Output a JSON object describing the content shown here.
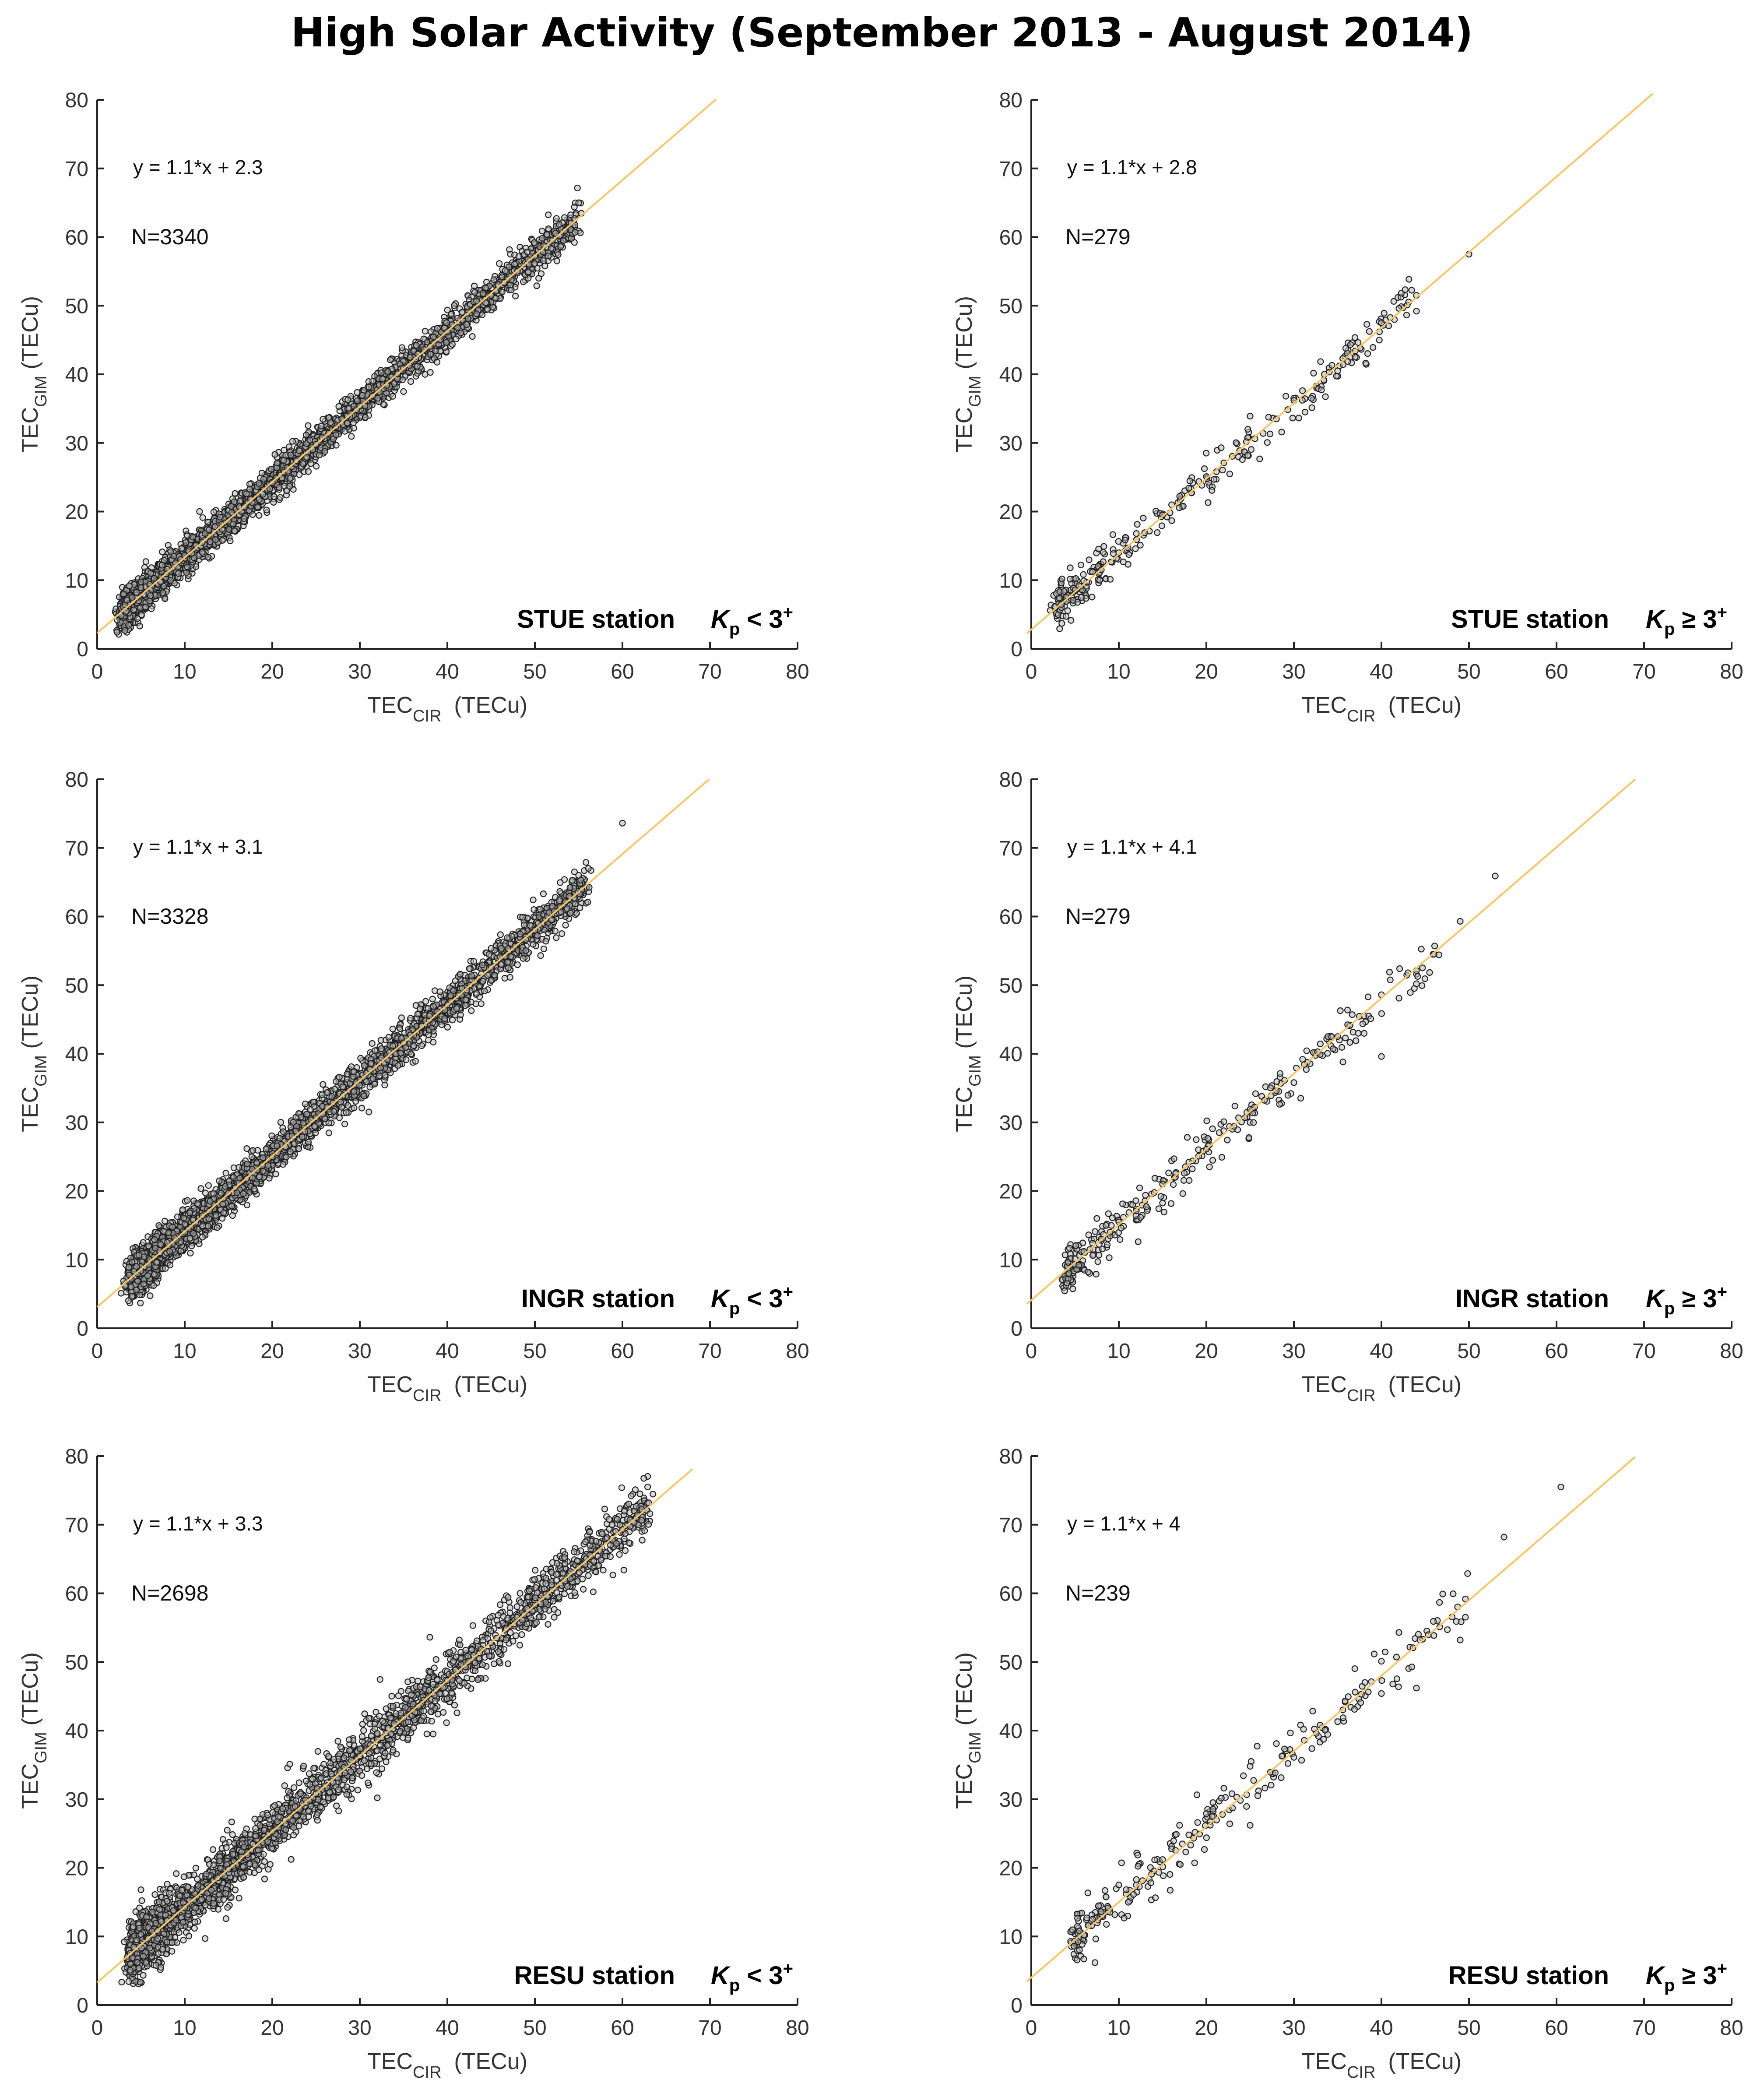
{
  "figure": {
    "title": "High Solar Activity (September 2013 - August 2014)"
  },
  "colors": {
    "fit_line": "#f5c56a",
    "points_stroke": "#222222",
    "points_fill": "#bbbbbb",
    "axis": "#222222"
  },
  "chart_data": [
    {
      "type": "scatter",
      "panel": "top-left",
      "station": "STUE station",
      "kp_condition": "Kp < 3+",
      "kp_label": {
        "k": "K",
        "sub": "p",
        "rel": "<",
        "val": "3",
        "sup": "+"
      },
      "equation": "y = 1.1*x + 2.3",
      "fit": {
        "slope": 1.1,
        "intercept": 2.3,
        "x_range": [
          0,
          70.7
        ]
      },
      "n_label": "N=3340",
      "n": 3340,
      "xlabel": "TEC_CIR (TECu)",
      "ylabel": "TEC_GIM (TECu)",
      "xlabel_parts": {
        "main": "TEC",
        "sub": "CIR",
        "unit": "(TECu)"
      },
      "ylabel_parts": {
        "main": "TEC",
        "sub": "GIM",
        "unit": "(TECu)"
      },
      "xlim": [
        0,
        80
      ],
      "ylim": [
        0,
        80
      ],
      "xticks": [
        0,
        10,
        20,
        30,
        40,
        50,
        60,
        70,
        80
      ],
      "yticks": [
        0,
        10,
        20,
        30,
        40,
        50,
        60,
        70,
        80
      ],
      "x_data_range": [
        3,
        55
      ],
      "spread": 1.3,
      "points": [
        [
          3.2,
          6.4
        ],
        [
          3.4,
          7.1
        ],
        [
          4,
          7.5
        ],
        [
          4.5,
          8.2
        ],
        [
          5,
          8.9
        ],
        [
          6,
          9.4
        ],
        [
          8,
          11.6
        ],
        [
          10,
          13.6
        ],
        [
          12,
          15.5
        ],
        [
          15,
          18.6
        ],
        [
          20,
          24.2
        ],
        [
          25,
          29.8
        ],
        [
          30,
          35.4
        ],
        [
          35,
          40.9
        ],
        [
          40,
          46.2
        ],
        [
          45,
          51.5
        ],
        [
          48,
          55
        ],
        [
          50,
          57.2
        ],
        [
          52,
          59.5
        ],
        [
          55,
          65
        ]
      ]
    },
    {
      "type": "scatter",
      "panel": "top-right",
      "station": "STUE station",
      "kp_condition": "Kp ≥ 3+",
      "kp_label": {
        "k": "K",
        "sub": "p",
        "rel": "≥",
        "val": "3",
        "sup": "+"
      },
      "equation": "y = 1.1*x + 2.8",
      "fit": {
        "slope": 1.1,
        "intercept": 2.8,
        "x_range": [
          -0.5,
          71
        ]
      },
      "n_label": "N=279",
      "n": 279,
      "xlabel": "TEC_CIR (TECu)",
      "ylabel": "TEC_GIM (TECu)",
      "xlabel_parts": {
        "main": "TEC",
        "sub": "CIR",
        "unit": "(TECu)"
      },
      "ylabel_parts": {
        "main": "TEC",
        "sub": "GIM",
        "unit": "(TECu)"
      },
      "xlim": [
        0,
        80
      ],
      "ylim": [
        0,
        80
      ],
      "xticks": [
        0,
        10,
        20,
        30,
        40,
        50,
        60,
        70,
        80
      ],
      "yticks": [
        0,
        10,
        20,
        30,
        40,
        50,
        60,
        70,
        80
      ],
      "x_data_range": [
        3,
        44
      ],
      "spread": 1.4,
      "points": [
        [
          3.2,
          7.4
        ],
        [
          4,
          6.9
        ],
        [
          5,
          8.6
        ],
        [
          6,
          9.9
        ],
        [
          7,
          11.2
        ],
        [
          8,
          11.5
        ],
        [
          10,
          14
        ],
        [
          12,
          16.8
        ],
        [
          15,
          19.5
        ],
        [
          18,
          23.4
        ],
        [
          20,
          25.1
        ],
        [
          22,
          27.1
        ],
        [
          25,
          33.9
        ],
        [
          28,
          33.5
        ],
        [
          30,
          36.2
        ],
        [
          32,
          36.5
        ],
        [
          35,
          40.5
        ],
        [
          37,
          42.5
        ],
        [
          40,
          47.5
        ],
        [
          42,
          49.6
        ],
        [
          44,
          51.5
        ],
        [
          44,
          49.2
        ],
        [
          50,
          57.5
        ]
      ]
    },
    {
      "type": "scatter",
      "panel": "middle-left",
      "station": "INGR station",
      "kp_condition": "Kp < 3+",
      "kp_label": {
        "k": "K",
        "sub": "p",
        "rel": "<",
        "val": "3",
        "sup": "+"
      },
      "equation": "y = 1.1*x + 3.1",
      "fit": {
        "slope": 1.1,
        "intercept": 3.1,
        "x_range": [
          0,
          69.9
        ]
      },
      "n_label": "N=3328",
      "n": 3328,
      "xlabel": "TEC_CIR (TECu)",
      "ylabel": "TEC_GIM (TECu)",
      "xlabel_parts": {
        "main": "TEC",
        "sub": "CIR",
        "unit": "(TECu)"
      },
      "ylabel_parts": {
        "main": "TEC",
        "sub": "GIM",
        "unit": "(TECu)"
      },
      "xlim": [
        0,
        80
      ],
      "ylim": [
        0,
        80
      ],
      "xticks": [
        0,
        10,
        20,
        30,
        40,
        50,
        60,
        70,
        80
      ],
      "yticks": [
        0,
        10,
        20,
        30,
        40,
        50,
        60,
        70,
        80
      ],
      "x_data_range": [
        4,
        56
      ],
      "spread": 1.5,
      "points": [
        [
          4.2,
          8.3
        ],
        [
          4.5,
          9
        ],
        [
          5,
          8.4
        ],
        [
          6,
          10
        ],
        [
          8,
          12.5
        ],
        [
          10,
          14
        ],
        [
          12,
          16.4
        ],
        [
          15,
          19.7
        ],
        [
          20,
          25
        ],
        [
          25,
          30.7
        ],
        [
          30,
          36.2
        ],
        [
          35,
          41.6
        ],
        [
          40,
          47.1
        ],
        [
          45,
          52.6
        ],
        [
          50,
          58
        ],
        [
          52,
          61.5
        ],
        [
          54,
          64.2
        ],
        [
          55,
          66
        ],
        [
          60,
          73.6
        ]
      ]
    },
    {
      "type": "scatter",
      "panel": "middle-right",
      "station": "INGR station",
      "kp_condition": "Kp ≥ 3+",
      "kp_label": {
        "k": "K",
        "sub": "p",
        "rel": "≥",
        "val": "3",
        "sup": "+"
      },
      "equation": "y = 1.1*x + 4.1",
      "fit": {
        "slope": 1.1,
        "intercept": 4.1,
        "x_range": [
          -0.5,
          69
        ]
      },
      "n_label": "N=279",
      "n": 279,
      "xlabel": "TEC_CIR (TECu)",
      "ylabel": "TEC_GIM (TECu)",
      "xlabel_parts": {
        "main": "TEC",
        "sub": "CIR",
        "unit": "(TECu)"
      },
      "ylabel_parts": {
        "main": "TEC",
        "sub": "GIM",
        "unit": "(TECu)"
      },
      "xlim": [
        0,
        80
      ],
      "ylim": [
        0,
        80
      ],
      "xticks": [
        0,
        10,
        20,
        30,
        40,
        50,
        60,
        70,
        80
      ],
      "yticks": [
        0,
        10,
        20,
        30,
        40,
        50,
        60,
        70,
        80
      ],
      "x_data_range": [
        4,
        47
      ],
      "spread": 1.7,
      "points": [
        [
          4.2,
          9.6
        ],
        [
          5,
          10.1
        ],
        [
          6,
          11.2
        ],
        [
          6.5,
          8.2
        ],
        [
          7,
          12.4
        ],
        [
          8,
          13
        ],
        [
          9,
          14
        ],
        [
          10,
          15.5
        ],
        [
          12,
          17.1
        ],
        [
          15,
          21
        ],
        [
          18,
          24.2
        ],
        [
          20,
          26.1
        ],
        [
          22,
          30.1
        ],
        [
          25,
          31.9
        ],
        [
          28,
          34.6
        ],
        [
          30,
          35.8
        ],
        [
          33,
          39.9
        ],
        [
          35,
          42.5
        ],
        [
          38,
          45.5
        ],
        [
          40,
          39.6
        ],
        [
          40,
          48.6
        ],
        [
          42,
          48.1
        ],
        [
          44,
          50.2
        ],
        [
          46,
          54.5
        ],
        [
          49,
          59.3
        ],
        [
          53,
          65.9
        ]
      ]
    },
    {
      "type": "scatter",
      "panel": "bottom-left",
      "station": "RESU station",
      "kp_condition": "Kp < 3+",
      "kp_label": {
        "k": "K",
        "sub": "p",
        "rel": "<",
        "val": "3",
        "sup": "+"
      },
      "equation": "y = 1.1*x + 3.3",
      "fit": {
        "slope": 1.1,
        "intercept": 3.3,
        "x_range": [
          0,
          68
        ]
      },
      "n_label": "N=2698",
      "n": 2698,
      "xlabel": "TEC_CIR (TECu)",
      "ylabel": "TEC_GIM (TECu)",
      "xlabel_parts": {
        "main": "TEC",
        "sub": "CIR",
        "unit": "(TECu)"
      },
      "ylabel_parts": {
        "main": "TEC",
        "sub": "GIM",
        "unit": "(TECu)"
      },
      "xlim": [
        0,
        80
      ],
      "ylim": [
        0,
        80
      ],
      "xticks": [
        0,
        10,
        20,
        30,
        40,
        50,
        60,
        70,
        80
      ],
      "yticks": [
        0,
        10,
        20,
        30,
        40,
        50,
        60,
        70,
        80
      ],
      "x_data_range": [
        4,
        63
      ],
      "spread": 2.1,
      "points": [
        [
          4.5,
          9.5
        ],
        [
          5,
          16.8
        ],
        [
          5,
          10.3
        ],
        [
          6,
          8.3
        ],
        [
          8,
          12.3
        ],
        [
          10,
          14.2
        ],
        [
          12,
          16.5
        ],
        [
          15,
          19.8
        ],
        [
          20,
          25.3
        ],
        [
          22,
          35.1
        ],
        [
          25,
          30.8
        ],
        [
          30,
          36.3
        ],
        [
          32,
          30.2
        ],
        [
          35,
          41.8
        ],
        [
          38,
          53.6
        ],
        [
          40,
          47.3
        ],
        [
          45,
          52.8
        ],
        [
          50,
          58.3
        ],
        [
          55,
          63.8
        ],
        [
          60,
          69.3
        ],
        [
          61,
          74.2
        ],
        [
          62,
          74.5
        ],
        [
          63,
          73.2
        ]
      ]
    },
    {
      "type": "scatter",
      "panel": "bottom-right",
      "station": "RESU station",
      "kp_condition": "Kp ≥ 3+",
      "kp_label": {
        "k": "K",
        "sub": "p",
        "rel": "≥",
        "val": "3",
        "sup": "+"
      },
      "equation": "y = 1.1*x + 4",
      "fit": {
        "slope": 1.1,
        "intercept": 4,
        "x_range": [
          -0.5,
          69
        ]
      },
      "n_label": "N=239",
      "n": 239,
      "xlabel": "TEC_CIR (TECu)",
      "ylabel": "TEC_GIM (TECu)",
      "xlabel_parts": {
        "main": "TEC",
        "sub": "CIR",
        "unit": "(TECu)"
      },
      "ylabel_parts": {
        "main": "TEC",
        "sub": "GIM",
        "unit": "(TECu)"
      },
      "xlim": [
        0,
        80
      ],
      "ylim": [
        0,
        80
      ],
      "xticks": [
        0,
        10,
        20,
        30,
        40,
        50,
        60,
        70,
        80
      ],
      "yticks": [
        0,
        10,
        20,
        30,
        40,
        50,
        60,
        70,
        80
      ],
      "x_data_range": [
        5,
        50
      ],
      "spread": 2.0,
      "points": [
        [
          5.5,
          10.8
        ],
        [
          6,
          10.2
        ],
        [
          7,
          12.5
        ],
        [
          8,
          13.6
        ],
        [
          10,
          17.5
        ],
        [
          12,
          17.5
        ],
        [
          15,
          21.2
        ],
        [
          18,
          24.8
        ],
        [
          20,
          27.9
        ],
        [
          22,
          31.6
        ],
        [
          25,
          26.2
        ],
        [
          25,
          34.8
        ],
        [
          28,
          38.1
        ],
        [
          30,
          36.1
        ],
        [
          33,
          40.8
        ],
        [
          35,
          41.3
        ],
        [
          37,
          45.6
        ],
        [
          40,
          45.4
        ],
        [
          40,
          50.1
        ],
        [
          42,
          54.3
        ],
        [
          44,
          46.2
        ],
        [
          47,
          59.9
        ],
        [
          49,
          53.2
        ],
        [
          54,
          68.2
        ],
        [
          60.5,
          75.5
        ]
      ]
    }
  ]
}
